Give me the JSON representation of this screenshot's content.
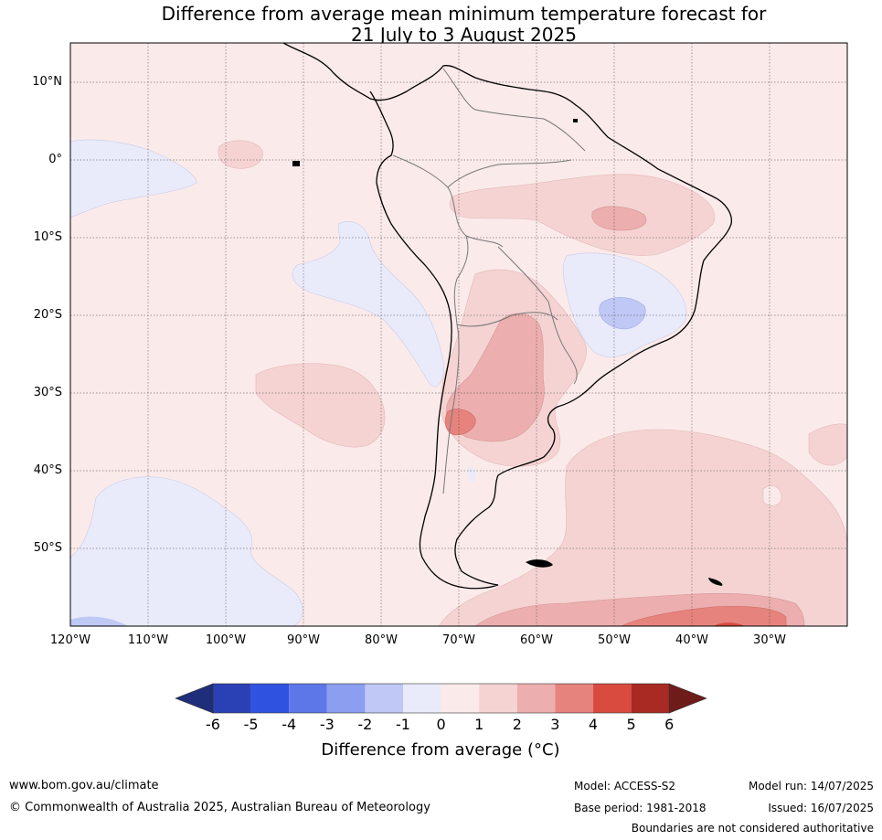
{
  "title": {
    "line1": "Difference from average mean minimum temperature forecast for",
    "line2": "21 July to 3 August 2025"
  },
  "map": {
    "lat_labels": [
      "10°N",
      "0°",
      "10°S",
      "20°S",
      "30°S",
      "40°S",
      "50°S"
    ],
    "lon_labels": [
      "120°W",
      "110°W",
      "100°W",
      "90°W",
      "80°W",
      "70°W",
      "60°W",
      "50°W",
      "40°W",
      "30°W"
    ]
  },
  "colorbar": {
    "title": "Difference from average (°C)",
    "ticks": [
      "-6",
      "-5",
      "-4",
      "-3",
      "-2",
      "-1",
      "0",
      "1",
      "2",
      "3",
      "4",
      "5",
      "6"
    ],
    "colors": [
      "#1f2e7a",
      "#2a41b5",
      "#2f53e0",
      "#5e77e8",
      "#8b9ef0",
      "#c0c8f5",
      "#e9ebfb",
      "#fbeaea",
      "#f5d3d3",
      "#ecaeae",
      "#e6837d",
      "#d94a3f",
      "#a82a22",
      "#6e1c1a"
    ]
  },
  "footer": {
    "website": "www.bom.gov.au/climate",
    "copyright": "© Commonwealth of Australia 2025, Australian Bureau of Meteorology",
    "model": "Model: ACCESS-S2",
    "base_period": "Base period: 1981-2018",
    "model_run": "Model run: 14/07/2025",
    "issued": "Issued: 16/07/2025",
    "boundaries": "Boundaries are not considered authoritative"
  }
}
